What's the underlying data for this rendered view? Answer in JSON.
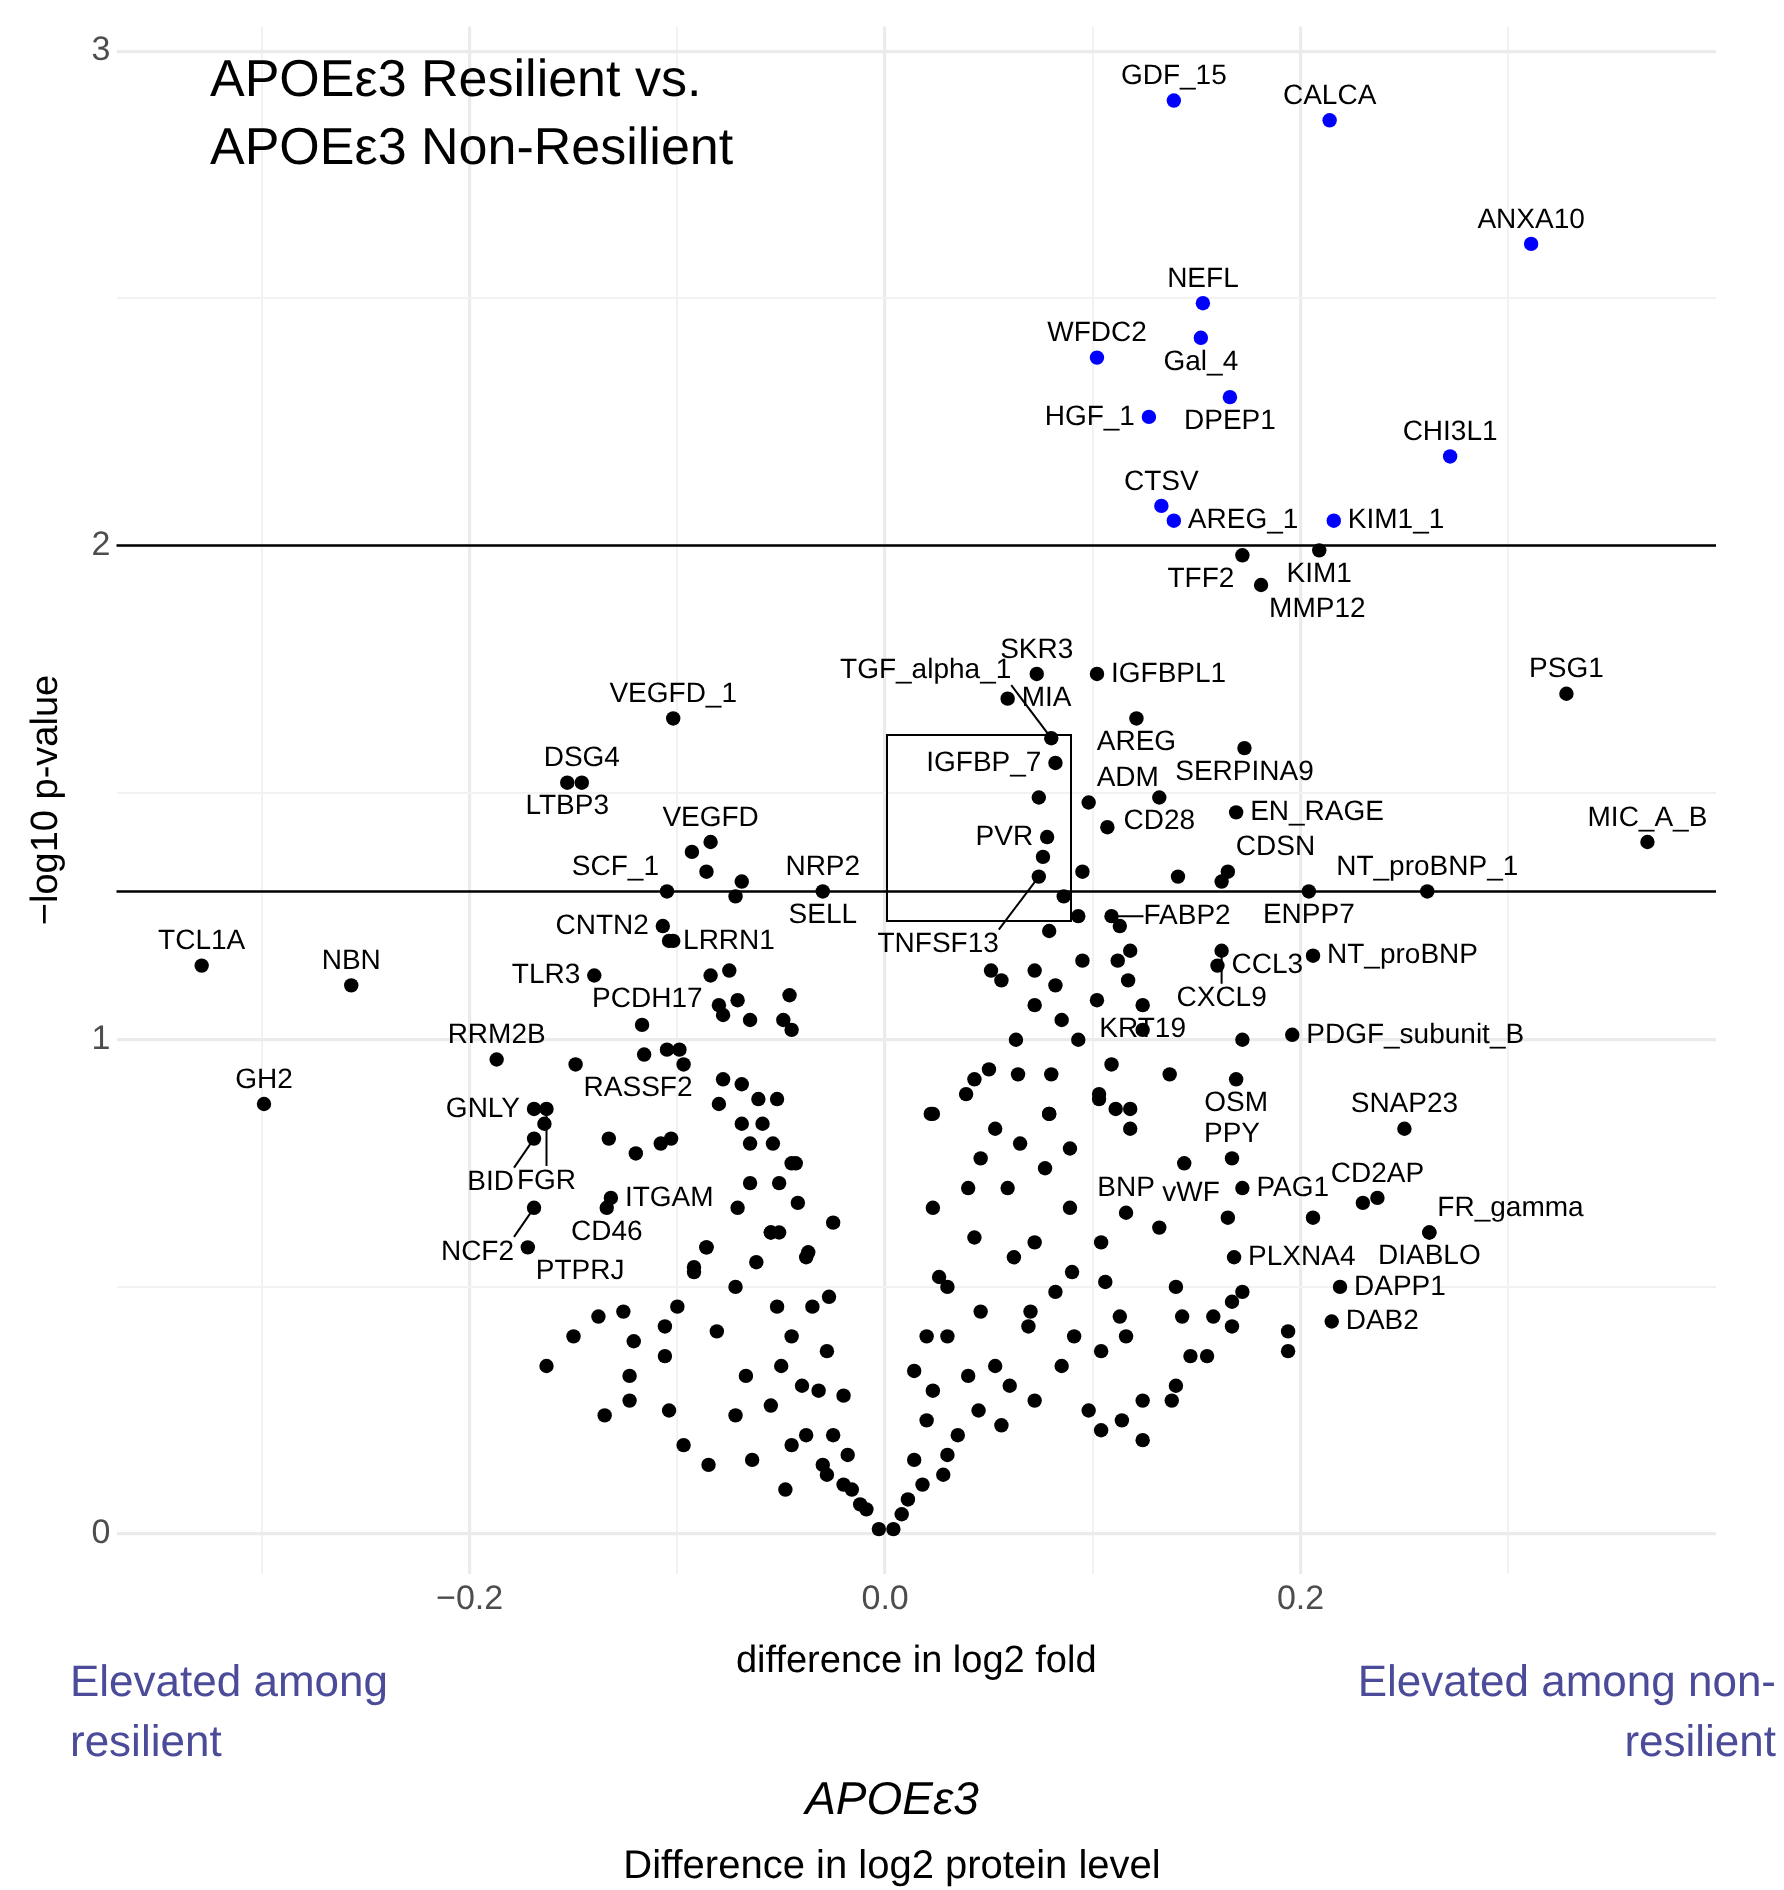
{
  "chart_data": {
    "type": "scatter",
    "title": "APOEε3 Resilient vs. APOEε3 Non-Resilient",
    "xlabel": "difference in log2 fold",
    "ylabel": "−log10 p-value",
    "xlim": [
      -0.37,
      0.4
    ],
    "ylim": [
      -0.08,
      3.05
    ],
    "xticks": [
      {
        "value": -0.3,
        "label": null
      },
      {
        "value": -0.2,
        "label": "−0.2"
      },
      {
        "value": -0.1,
        "label": null
      },
      {
        "value": 0,
        "label": "0.0"
      },
      {
        "value": 0.1,
        "label": null
      },
      {
        "value": 0.2,
        "label": "0.2"
      },
      {
        "value": 0.3,
        "label": null
      }
    ],
    "yticks": [
      0,
      {
        "value": 0.5,
        "label": null
      },
      1,
      {
        "value": 1.5,
        "label": null
      },
      2,
      {
        "value": 2.5,
        "label": null
      },
      3
    ],
    "grid": true,
    "legend": false,
    "marker": "circle",
    "ref_lines": [
      {
        "axis": "y",
        "value": 2,
        "color": "#000000"
      },
      {
        "axis": "y",
        "value": 1.3,
        "color": "#000000"
      }
    ],
    "series": [
      {
        "color": "#0000ff",
        "x": [
          0.139,
          0.214,
          0.311,
          0.153,
          0.152,
          0.102,
          0.166,
          0.127,
          0.272,
          0.133,
          0.139,
          0.216
        ],
        "values": [
          2.9,
          2.86,
          2.61,
          2.49,
          2.42,
          2.38,
          2.3,
          2.26,
          2.18,
          2.08,
          2.05,
          2.05
        ]
      },
      {
        "color": "#000000",
        "x": [
          0.172,
          0.209,
          0.181,
          0.073,
          0.102,
          0.059,
          0.121,
          0.08,
          0.173,
          0.082,
          0.328,
          0.132,
          0.169,
          0.074,
          0.078,
          0.076,
          0.074,
          0.098,
          0.107,
          0.095,
          0.141,
          0.165,
          0.162,
          0.204,
          0.261,
          0.367,
          0.086,
          0.109,
          0.113,
          0.093,
          0.079,
          0.206,
          0.16,
          0.162,
          0.112,
          0.118,
          0.117,
          0.124,
          0.124,
          0.196,
          0.172,
          0.169,
          0.25,
          0.167,
          0.144,
          0.172,
          0.116,
          0.237,
          0.23,
          0.262,
          0.262,
          0.165,
          0.168,
          0.206,
          0.219,
          0.215,
          0.194,
          0.194,
          0.137,
          0.109,
          0.051,
          0.072,
          0.056,
          0.082,
          0.095,
          0.102,
          0.072,
          0.085,
          0.063,
          0.093,
          0.043,
          0.103,
          0.079,
          0.118,
          0.023,
          -0.102,
          -0.146,
          -0.153,
          -0.084,
          -0.105,
          -0.03,
          -0.107,
          -0.104,
          -0.084,
          -0.329,
          -0.257,
          -0.14,
          -0.187,
          -0.149,
          -0.299,
          -0.169,
          -0.163,
          -0.169,
          -0.132,
          -0.134,
          -0.169,
          -0.172,
          -0.093,
          -0.086,
          -0.069,
          -0.072,
          -0.102,
          -0.075,
          -0.08,
          -0.078,
          -0.071,
          -0.065,
          -0.046,
          -0.049,
          -0.045,
          -0.117,
          -0.116,
          -0.105,
          -0.099,
          -0.097,
          -0.164,
          -0.133,
          -0.12,
          -0.108,
          -0.103,
          -0.086,
          -0.092,
          -0.078,
          -0.069,
          -0.08,
          -0.061,
          -0.052,
          -0.069,
          -0.059,
          -0.065,
          -0.054,
          -0.043,
          -0.065,
          -0.051,
          -0.071,
          -0.051,
          -0.037,
          -0.15,
          -0.138,
          -0.126,
          -0.121,
          -0.135,
          -0.123,
          -0.123,
          -0.106,
          -0.106,
          -0.104,
          -0.097,
          -0.085,
          -0.092,
          -0.086,
          -0.1,
          -0.081,
          -0.072,
          -0.072,
          -0.067,
          -0.064,
          -0.062,
          -0.055,
          -0.045,
          -0.042,
          -0.038,
          -0.055,
          -0.052,
          -0.045,
          -0.05,
          -0.055,
          -0.045,
          -0.048,
          -0.035,
          -0.028,
          -0.032,
          -0.025,
          -0.028,
          -0.018,
          -0.016,
          -0.009,
          -0.003,
          -0.025,
          -0.027,
          -0.163,
          0.004,
          0.011,
          0.014,
          0.014,
          0.02,
          0.023,
          0.023,
          0.022,
          0.03,
          0.026,
          0.03,
          0.04,
          0.039,
          0.046,
          0.043,
          0.046,
          0.05,
          0.053,
          0.053,
          0.056,
          0.059,
          0.062,
          0.064,
          0.065,
          0.072,
          0.069,
          0.072,
          0.08,
          0.077,
          0.079,
          0.082,
          0.085,
          0.089,
          0.089,
          0.09,
          0.091,
          0.098,
          0.103,
          0.104,
          0.106,
          0.104,
          0.104,
          0.111,
          0.113,
          0.116,
          0.114,
          0.118,
          0.124,
          0.124,
          0.132,
          0.14,
          0.138,
          0.14,
          0.143,
          0.147,
          0.155,
          0.158,
          0.167,
          0.167,
          0.172,
          -0.012,
          -0.02,
          -0.03,
          -0.038,
          -0.02,
          -0.04,
          0.008,
          0.018,
          0.028,
          0.035,
          0.045,
          0.04,
          0.06,
          0.02,
          0.03,
          0.07
        ],
        "values": [
          1.98,
          1.99,
          1.92,
          1.74,
          1.74,
          1.69,
          1.65,
          1.61,
          1.59,
          1.56,
          1.7,
          1.49,
          1.46,
          1.49,
          1.41,
          1.37,
          1.33,
          1.48,
          1.43,
          1.34,
          1.33,
          1.34,
          1.32,
          1.3,
          1.3,
          1.4,
          1.29,
          1.25,
          1.23,
          1.25,
          1.22,
          1.17,
          1.15,
          1.18,
          1.16,
          1.18,
          1.12,
          1.07,
          1.02,
          1.01,
          1.0,
          0.92,
          0.82,
          0.76,
          0.75,
          0.7,
          0.65,
          0.68,
          0.67,
          0.61,
          0.61,
          0.64,
          0.56,
          0.64,
          0.5,
          0.43,
          0.41,
          0.37,
          0.93,
          0.95,
          1.14,
          1.14,
          1.12,
          1.11,
          1.16,
          1.08,
          1.07,
          1.04,
          1.0,
          1.0,
          0.92,
          0.88,
          0.85,
          0.86,
          0.85,
          1.65,
          1.52,
          1.52,
          1.4,
          1.3,
          1.3,
          1.23,
          1.2,
          1.13,
          1.15,
          1.11,
          1.13,
          0.96,
          0.95,
          0.87,
          0.86,
          0.86,
          0.8,
          0.68,
          0.66,
          0.66,
          0.58,
          1.38,
          1.34,
          1.32,
          1.29,
          1.2,
          1.14,
          1.07,
          1.05,
          1.08,
          1.04,
          1.09,
          1.04,
          1.02,
          1.03,
          0.97,
          0.98,
          0.98,
          0.95,
          0.83,
          0.8,
          0.77,
          0.79,
          0.8,
          0.58,
          0.54,
          0.92,
          0.91,
          0.87,
          0.88,
          0.88,
          0.83,
          0.83,
          0.79,
          0.79,
          0.75,
          0.71,
          0.71,
          0.66,
          0.61,
          0.57,
          0.4,
          0.44,
          0.45,
          0.39,
          0.24,
          0.32,
          0.27,
          0.42,
          0.36,
          0.25,
          0.18,
          0.14,
          0.53,
          0.58,
          0.46,
          0.41,
          0.5,
          0.24,
          0.32,
          0.15,
          0.55,
          0.61,
          0.75,
          0.67,
          0.56,
          0.61,
          0.46,
          0.4,
          0.34,
          0.26,
          0.18,
          0.09,
          0.46,
          0.37,
          0.29,
          0.2,
          0.12,
          0.16,
          0.09,
          0.05,
          0.01,
          0.63,
          0.48,
          0.34,
          0.01,
          0.07,
          0.15,
          0.33,
          0.23,
          0.29,
          0.66,
          0.85,
          0.4,
          0.52,
          0.16,
          0.7,
          0.89,
          0.76,
          0.6,
          0.45,
          0.94,
          0.82,
          0.34,
          0.22,
          0.7,
          0.56,
          0.93,
          0.79,
          0.59,
          0.42,
          0.27,
          0.93,
          0.74,
          0.85,
          0.49,
          0.34,
          0.78,
          0.66,
          0.53,
          0.4,
          0.25,
          0.89,
          0.59,
          0.51,
          0.37,
          0.21,
          0.86,
          0.44,
          0.4,
          0.23,
          0.82,
          0.27,
          0.19,
          0.62,
          0.5,
          0.27,
          0.3,
          0.44,
          0.36,
          0.36,
          0.44,
          0.47,
          0.42,
          0.49,
          0.06,
          0.1,
          0.14,
          0.2,
          0.28,
          0.3,
          0.04,
          0.1,
          0.12,
          0.2,
          0.25,
          0.32,
          0.3,
          0.4,
          0.5,
          0.45
        ]
      }
    ],
    "annotations": [
      {
        "text": "GDF_15",
        "x": 0.139,
        "y": 2.9
      },
      {
        "text": "CALCA",
        "x": 0.214,
        "y": 2.86
      },
      {
        "text": "ANXA10",
        "x": 0.311,
        "y": 2.61
      },
      {
        "text": "NEFL",
        "x": 0.153,
        "y": 2.49
      },
      {
        "text": "Gal_4",
        "x": 0.152,
        "y": 2.42
      },
      {
        "text": "WFDC2",
        "x": 0.102,
        "y": 2.38
      },
      {
        "text": "DPEP1",
        "x": 0.166,
        "y": 2.3
      },
      {
        "text": "HGF_1",
        "x": 0.127,
        "y": 2.26
      },
      {
        "text": "CHI3L1",
        "x": 0.272,
        "y": 2.18
      },
      {
        "text": "CTSV",
        "x": 0.133,
        "y": 2.08
      },
      {
        "text": "AREG_1",
        "x": 0.139,
        "y": 2.05
      },
      {
        "text": "KIM1_1",
        "x": 0.216,
        "y": 2.05
      },
      {
        "text": "TFF2",
        "x": 0.172,
        "y": 1.98
      },
      {
        "text": "KIM1",
        "x": 0.209,
        "y": 1.99
      },
      {
        "text": "MMP12",
        "x": 0.181,
        "y": 1.92
      },
      {
        "text": "SKR3",
        "x": 0.073,
        "y": 1.74
      },
      {
        "text": "IGFBPL1",
        "x": 0.102,
        "y": 1.74
      },
      {
        "text": "MIA",
        "x": 0.059,
        "y": 1.69
      },
      {
        "text": "AREG",
        "x": 0.121,
        "y": 1.65
      },
      {
        "text": "TGF_alpha_1",
        "x": 0.08,
        "y": 1.61
      },
      {
        "text": "SERPINA9",
        "x": 0.173,
        "y": 1.59
      },
      {
        "text": "IGFBP_7",
        "x": 0.082,
        "y": 1.56
      },
      {
        "text": "PSG1",
        "x": 0.328,
        "y": 1.7
      },
      {
        "text": "CD28",
        "x": 0.132,
        "y": 1.49
      },
      {
        "text": "EN_RAGE",
        "x": 0.169,
        "y": 1.46
      },
      {
        "text": "PVR",
        "x": 0.078,
        "y": 1.41
      },
      {
        "text": "ADM",
        "x": 0.098,
        "y": 1.48
      },
      {
        "text": "CDSN",
        "x": 0.165,
        "y": 1.34
      },
      {
        "text": "ENPP7",
        "x": 0.204,
        "y": 1.3
      },
      {
        "text": "NT_proBNP_1",
        "x": 0.261,
        "y": 1.3
      },
      {
        "text": "MIC_A_B",
        "x": 0.367,
        "y": 1.4
      },
      {
        "text": "TNFSF13",
        "x": 0.074,
        "y": 1.33
      },
      {
        "text": "FABP2",
        "x": 0.109,
        "y": 1.25
      },
      {
        "text": "CXCL9",
        "x": 0.162,
        "y": 1.18
      },
      {
        "text": "CCL3",
        "x": 0.16,
        "y": 1.15
      },
      {
        "text": "NT_proBNP",
        "x": 0.206,
        "y": 1.17
      },
      {
        "text": "KRT19",
        "x": 0.124,
        "y": 1.07
      },
      {
        "text": "PDGF_subunit_B",
        "x": 0.196,
        "y": 1.01
      },
      {
        "text": "OSM",
        "x": 0.169,
        "y": 0.92
      },
      {
        "text": "SNAP23",
        "x": 0.25,
        "y": 0.82
      },
      {
        "text": "PPY",
        "x": 0.167,
        "y": 0.76
      },
      {
        "text": "PAG1",
        "x": 0.172,
        "y": 0.7
      },
      {
        "text": "BNP",
        "x": 0.116,
        "y": 0.65
      },
      {
        "text": "CD2AP",
        "x": 0.237,
        "y": 0.68
      },
      {
        "text": "DIABLO",
        "x": 0.262,
        "y": 0.61
      },
      {
        "text": "FR_gamma",
        "x": 0.262,
        "y": 0.61
      },
      {
        "text": "vWF",
        "x": 0.165,
        "y": 0.64
      },
      {
        "text": "PLXNA4",
        "x": 0.168,
        "y": 0.56
      },
      {
        "text": "DAPP1",
        "x": 0.219,
        "y": 0.5
      },
      {
        "text": "DAB2",
        "x": 0.215,
        "y": 0.43
      },
      {
        "text": "VEGFD_1",
        "x": -0.102,
        "y": 1.65
      },
      {
        "text": "DSG4",
        "x": -0.146,
        "y": 1.52
      },
      {
        "text": "LTBP3",
        "x": -0.153,
        "y": 1.52
      },
      {
        "text": "VEGFD",
        "x": -0.084,
        "y": 1.4
      },
      {
        "text": "SCF_1",
        "x": -0.105,
        "y": 1.3
      },
      {
        "text": "NRP2",
        "x": -0.03,
        "y": 1.3
      },
      {
        "text": "SELL",
        "x": -0.03,
        "y": 1.3
      },
      {
        "text": "CNTN2",
        "x": -0.107,
        "y": 1.23
      },
      {
        "text": "LRRN1",
        "x": -0.104,
        "y": 1.2
      },
      {
        "text": "PCDH17",
        "x": -0.084,
        "y": 1.13
      },
      {
        "text": "TCL1A",
        "x": -0.329,
        "y": 1.15
      },
      {
        "text": "NBN",
        "x": -0.257,
        "y": 1.11
      },
      {
        "text": "TLR3",
        "x": -0.14,
        "y": 1.13
      },
      {
        "text": "RRM2B",
        "x": -0.187,
        "y": 0.96
      },
      {
        "text": "RASSF2",
        "x": -0.149,
        "y": 0.95
      },
      {
        "text": "GH2",
        "x": -0.299,
        "y": 0.87
      },
      {
        "text": "GNLY",
        "x": -0.169,
        "y": 0.86
      },
      {
        "text": "FGR",
        "x": -0.163,
        "y": 0.86
      },
      {
        "text": "BID",
        "x": -0.169,
        "y": 0.8
      },
      {
        "text": "ITGAM",
        "x": -0.132,
        "y": 0.68
      },
      {
        "text": "CD46",
        "x": -0.134,
        "y": 0.66
      },
      {
        "text": "NCF2",
        "x": -0.169,
        "y": 0.66
      },
      {
        "text": "PTPRJ",
        "x": -0.172,
        "y": 0.58
      },
      "Elevated among resilient",
      "Elevated among non-resilient",
      "APOEε3",
      "Difference in log2 protein level"
    ]
  }
}
